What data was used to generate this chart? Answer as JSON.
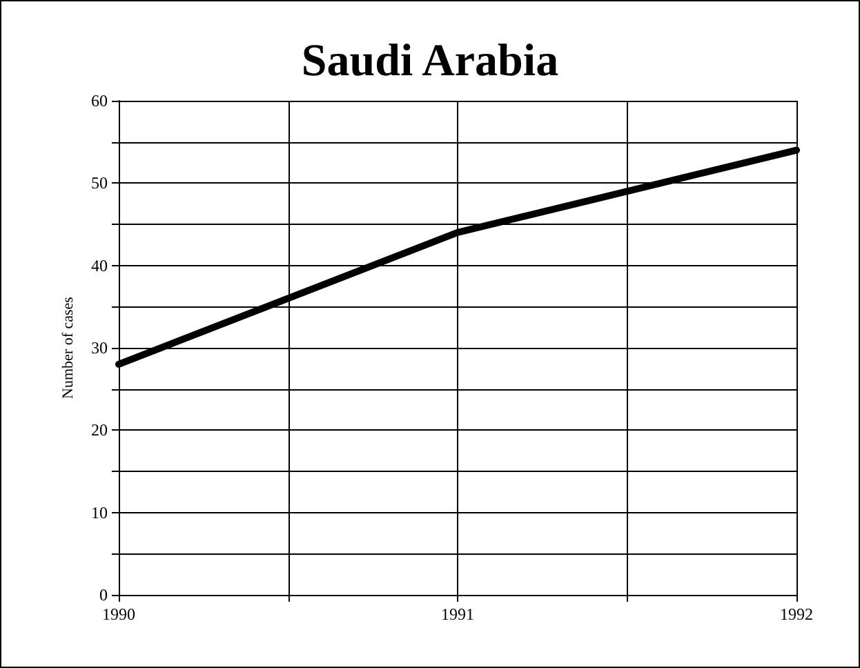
{
  "chart_data": {
    "type": "line",
    "title": "Saudi Arabia",
    "ylabel": "Number of cases",
    "x": [
      1990,
      1991,
      1992
    ],
    "series": [
      {
        "color": "#000000",
        "values": [
          28,
          44,
          54
        ]
      }
    ],
    "xlim": [
      1990,
      1992
    ],
    "xticks": [
      1990,
      {
        "value": 1990.5,
        "label": null
      },
      1991,
      {
        "value": 1991.5,
        "label": null
      },
      1992
    ],
    "ylim": [
      0,
      60
    ],
    "yticks": [
      0,
      {
        "value": 5,
        "label": null
      },
      10,
      {
        "value": 15,
        "label": null
      },
      20,
      {
        "value": 25,
        "label": null
      },
      30,
      {
        "value": 35,
        "label": null
      },
      40,
      {
        "value": 45,
        "label": null
      },
      50,
      {
        "value": 55,
        "label": null
      },
      60
    ],
    "grid": true,
    "marker": "none",
    "line_style": "solid"
  }
}
